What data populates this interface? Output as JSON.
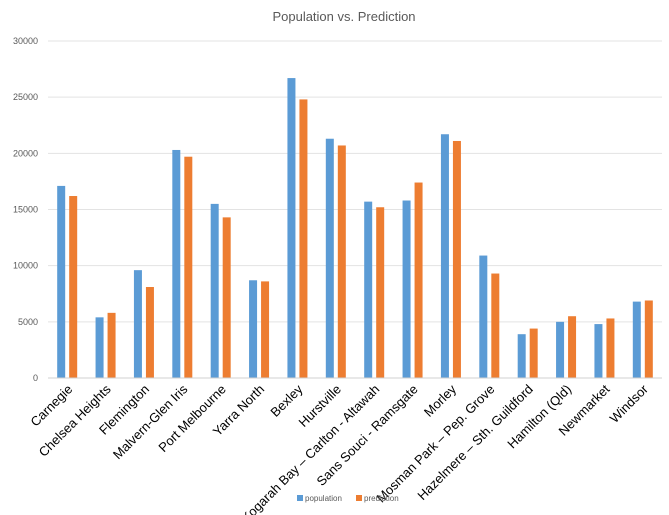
{
  "chart_data": {
    "type": "bar",
    "title": "Population vs. Prediction",
    "xlabel": "",
    "ylabel": "",
    "ylim": [
      0,
      30000
    ],
    "yticks": [
      0,
      5000,
      10000,
      15000,
      20000,
      25000,
      30000
    ],
    "grid": true,
    "legend_position": "bottom",
    "categories": [
      "Carnegie",
      "Chelsea Heights",
      "Flemington",
      "Malvern-Glen Iris",
      "Port Melbourne",
      "Yarra North",
      "Bexley",
      "Hurstville",
      "Kogarah Bay – Carlton - Altawah",
      "Sans Souci - Ramsgate",
      "Morley",
      "Mosman Park – Pep. Grove",
      "Hazelmere – Sth. Guildford",
      "Hamilton (Qld)",
      "Newmarket",
      "Windsor"
    ],
    "series": [
      {
        "name": "population",
        "color": "#5b9bd5",
        "values": [
          17100,
          5400,
          9600,
          20300,
          15500,
          8700,
          26700,
          21300,
          15700,
          15800,
          21700,
          10900,
          3900,
          5000,
          4800,
          6800
        ]
      },
      {
        "name": "prediction",
        "color": "#ed7d31",
        "values": [
          16200,
          5800,
          8100,
          19700,
          14300,
          8600,
          24800,
          20700,
          15200,
          17400,
          21100,
          9300,
          4400,
          5500,
          5300,
          6900
        ]
      }
    ]
  }
}
